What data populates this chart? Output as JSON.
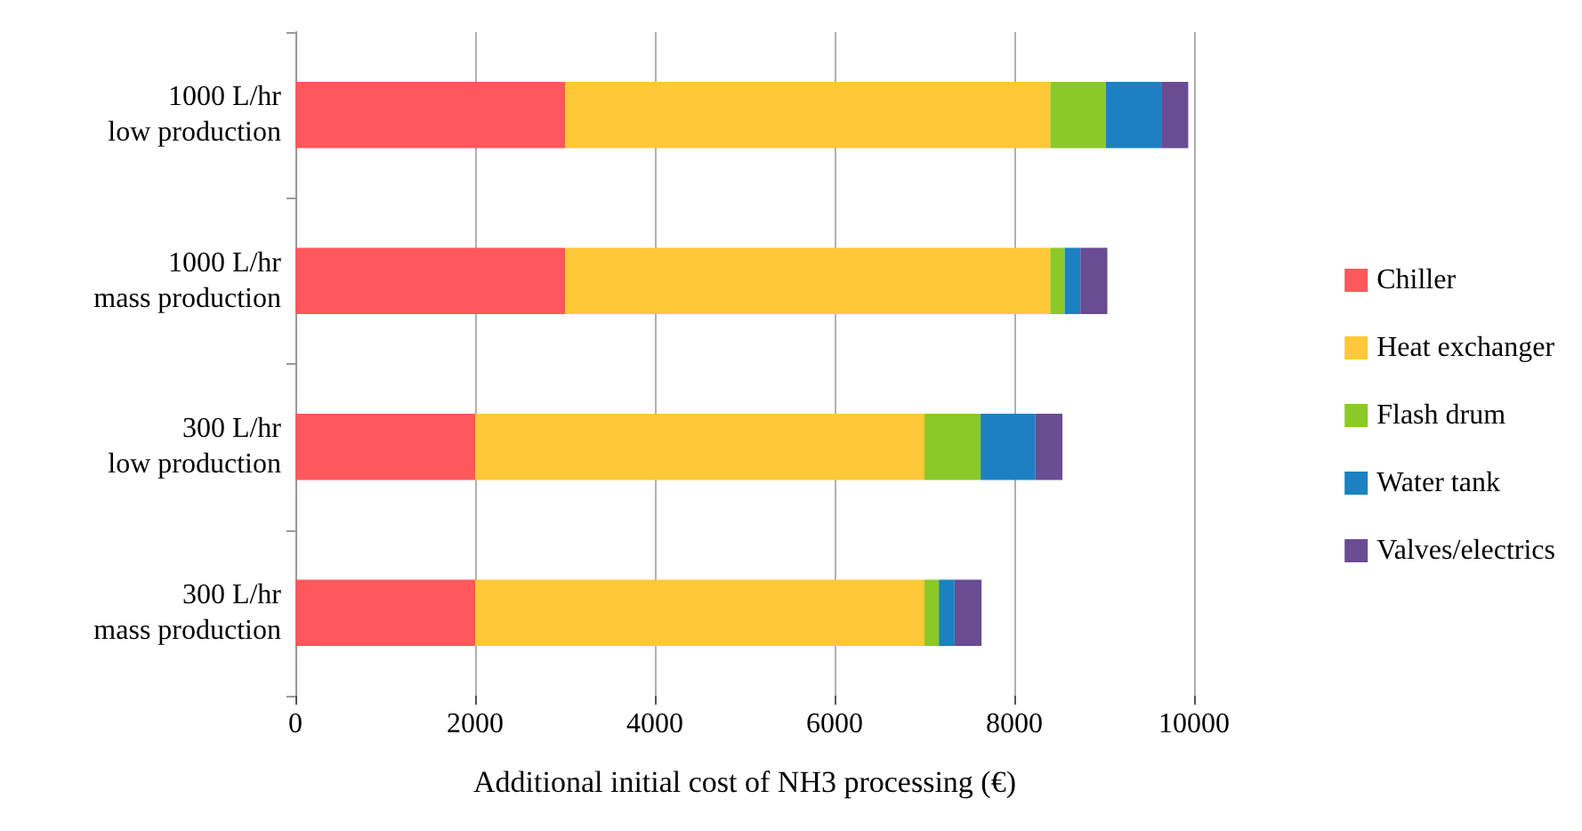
{
  "chart_data": {
    "type": "bar",
    "orientation": "horizontal",
    "stacked": true,
    "xlabel": "Additional initial cost of NH3 processing (€)",
    "categories": [
      "1000 L/hr\nlow production",
      "1000 L/hr\nmass production",
      "300 L/hr\nlow production",
      "300 L/hr\nmass production"
    ],
    "series": [
      {
        "name": "Chiller",
        "color": "#fe575c",
        "values": [
          3000,
          3000,
          2000,
          2000
        ]
      },
      {
        "name": "Heat exchanger",
        "color": "#fec838",
        "values": [
          5400,
          5400,
          5000,
          5000
        ]
      },
      {
        "name": "Flash drum",
        "color": "#8bc928",
        "values": [
          620,
          160,
          625,
          160
        ]
      },
      {
        "name": "Water tank",
        "color": "#1b81c3",
        "values": [
          615,
          175,
          610,
          175
        ]
      },
      {
        "name": "Valves/electrics",
        "color": "#694c92",
        "values": [
          300,
          300,
          300,
          300
        ]
      }
    ],
    "xlim": [
      0,
      10000
    ],
    "xticks": [
      0,
      2000,
      4000,
      6000,
      8000,
      10000
    ],
    "grid": "x",
    "legend": "right"
  }
}
